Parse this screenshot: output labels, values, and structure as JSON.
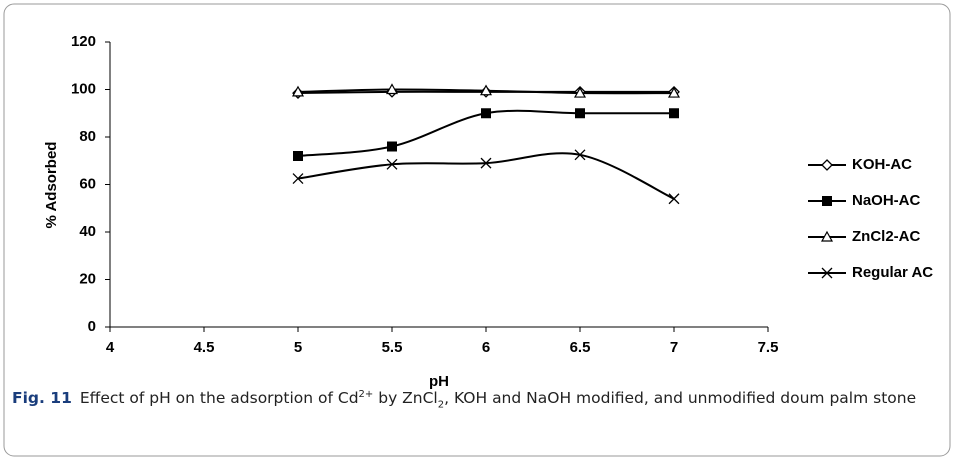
{
  "chart_data": {
    "type": "line",
    "x_label": "pH",
    "y_label": "% Adsorbed",
    "x": [
      5,
      5.5,
      6,
      6.5,
      7
    ],
    "series": [
      {
        "name": "KOH-AC",
        "color": "#000000",
        "marker": "diamond",
        "values": [
          98.5,
          99,
          99,
          99,
          99
        ]
      },
      {
        "name": "NaOH-AC",
        "color": "#000000",
        "marker": "square",
        "values": [
          72,
          76,
          90,
          90,
          90
        ]
      },
      {
        "name": "ZnCl2-AC",
        "color": "#000000",
        "marker": "triangle",
        "values": [
          99,
          100,
          99.5,
          98.5,
          98.5
        ]
      },
      {
        "name": "Regular AC",
        "color": "#000000",
        "marker": "cross",
        "values": [
          62.5,
          68.5,
          69,
          72.5,
          54
        ]
      }
    ],
    "xlim": [
      4,
      7.5
    ],
    "xticks": [
      4,
      4.5,
      5,
      5.5,
      6,
      6.5,
      7,
      7.5
    ],
    "ylim": [
      0,
      120
    ],
    "yticks": [
      0,
      20,
      40,
      60,
      80,
      100,
      120
    ],
    "grid": false,
    "smooth": true,
    "legend": "right"
  },
  "caption": {
    "label": "Fig. 11",
    "text": [
      "Effect of pH on the adsorption of Cd",
      "2+",
      " by ZnCl",
      "2",
      ", KOH and NaOH modified, and unmodified doum palm stone"
    ]
  }
}
